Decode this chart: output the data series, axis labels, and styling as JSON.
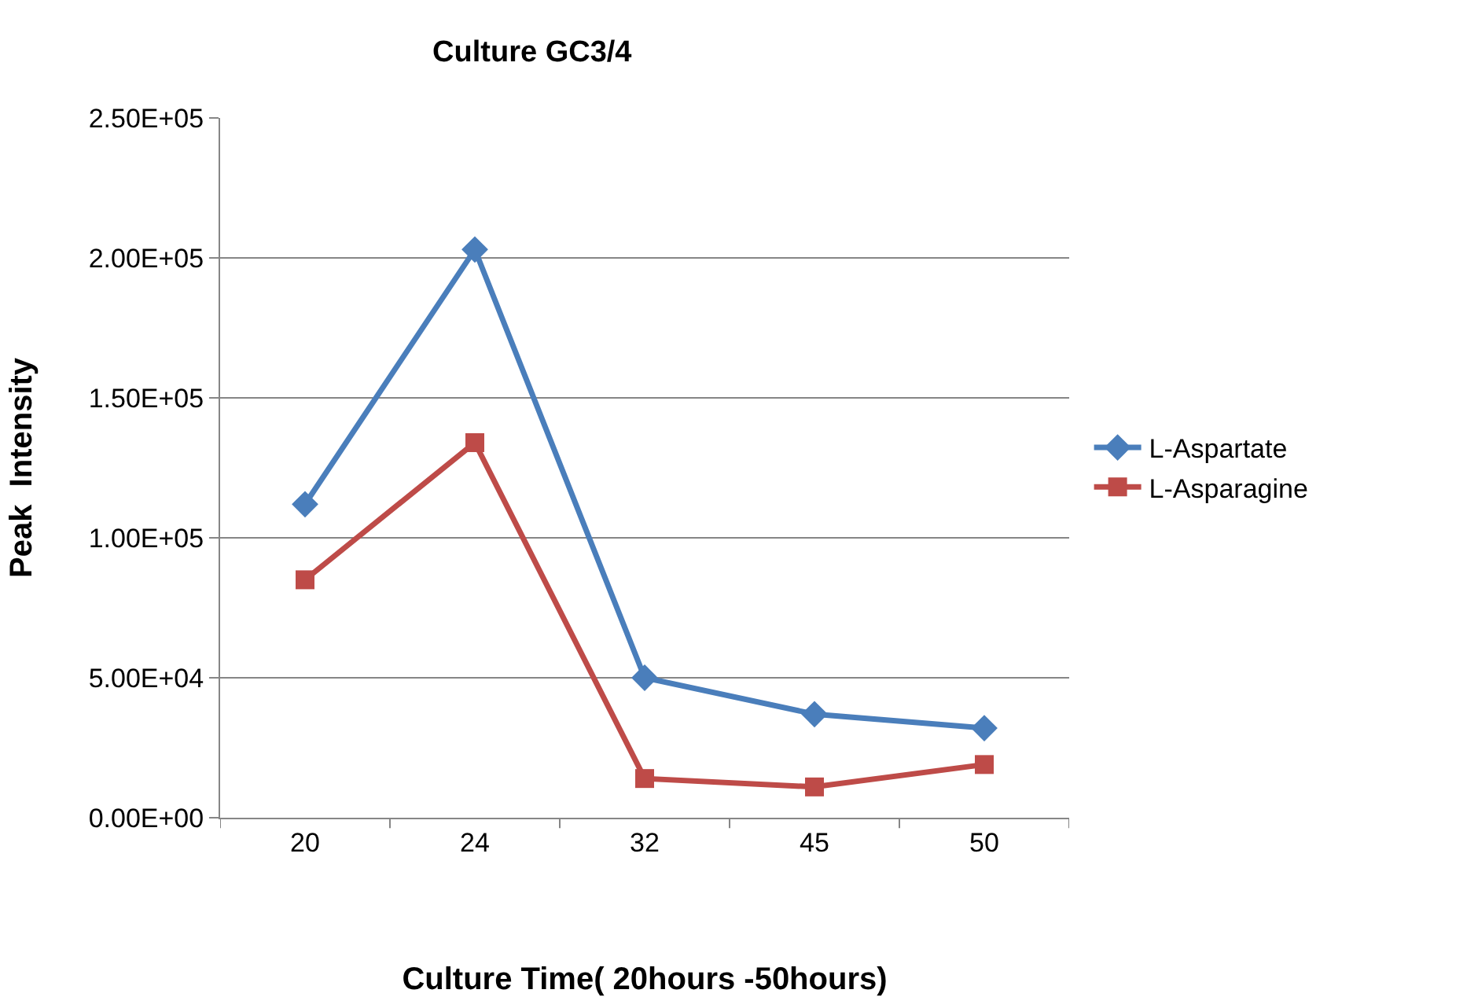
{
  "chart_data": {
    "type": "line",
    "title": "Culture GC3/4",
    "xlabel": "Culture Time( 20hours -50hours)",
    "ylabel": "Peak  Intensity",
    "categories": [
      "20",
      "24",
      "32",
      "45",
      "50"
    ],
    "series": [
      {
        "name": "L-Aspartate",
        "color": "#4a7ebb",
        "marker": "diamond",
        "values": [
          112000,
          203000,
          50000,
          37000,
          32000
        ]
      },
      {
        "name": "L-Asparagine",
        "color": "#be4b48",
        "marker": "square",
        "values": [
          85000,
          134000,
          14000,
          11000,
          19000
        ]
      }
    ],
    "ylim": [
      0,
      250000
    ],
    "yticks": [
      {
        "value": 0,
        "label": "0.00E+00"
      },
      {
        "value": 50000,
        "label": "5.00E+04"
      },
      {
        "value": 100000,
        "label": "1.00E+05"
      },
      {
        "value": 150000,
        "label": "1.50E+05"
      },
      {
        "value": 200000,
        "label": "2.00E+05"
      },
      {
        "value": 250000,
        "label": "2.50E+05"
      }
    ],
    "grid": "y",
    "legend": "right",
    "line_style": "solid"
  }
}
